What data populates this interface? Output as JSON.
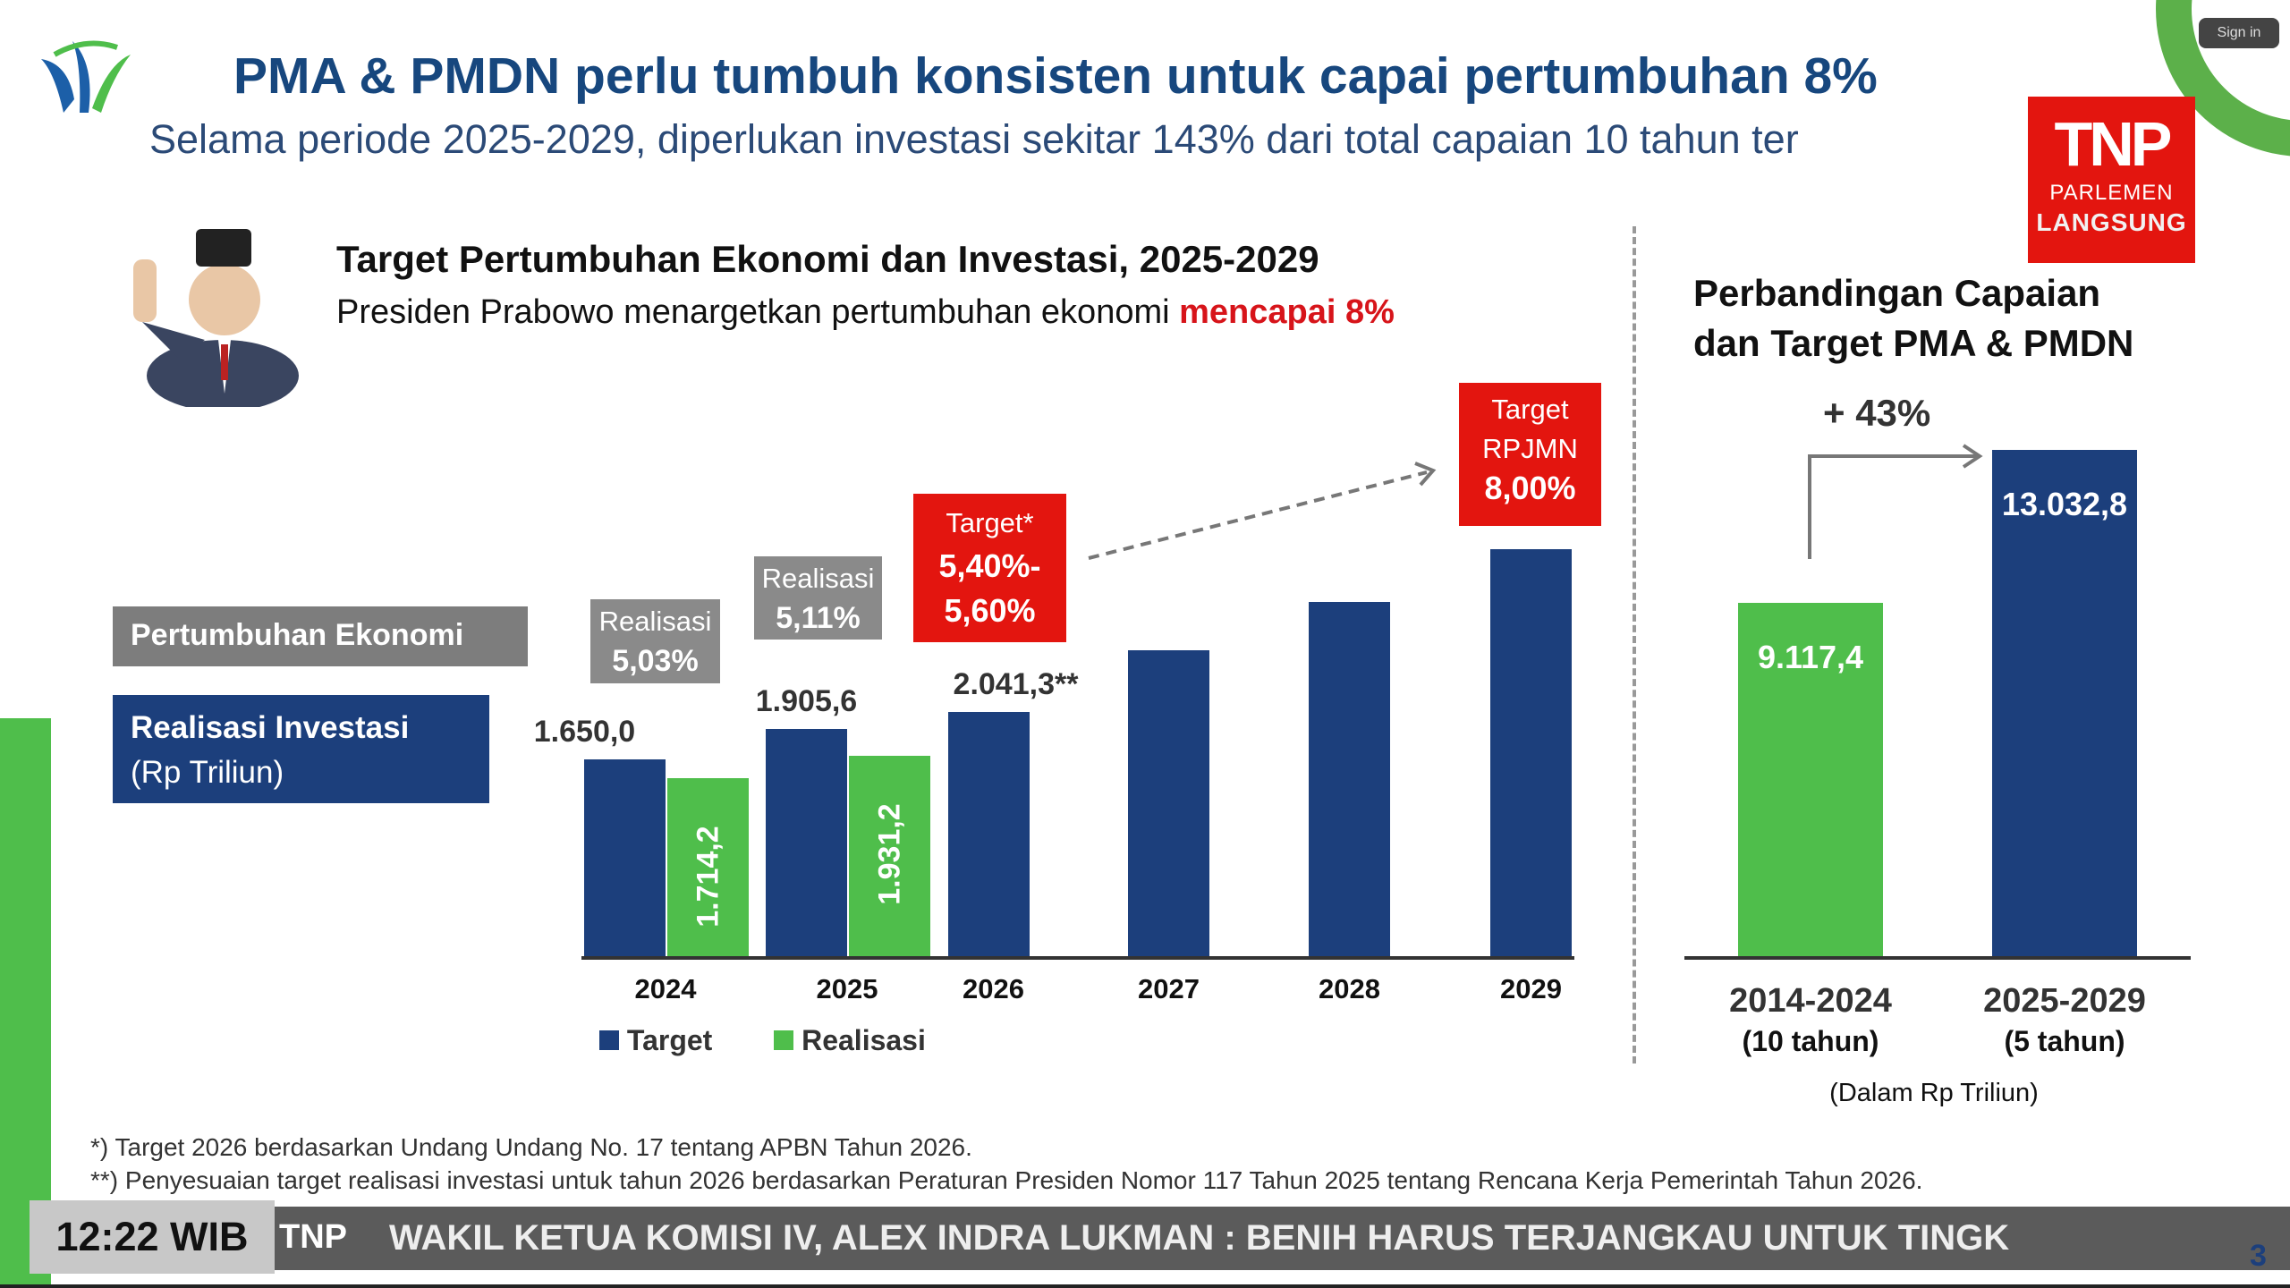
{
  "header": {
    "title": "PMA & PMDN perlu tumbuh konsisten untuk capai pertumbuhan 8%",
    "subtitle": "Selama periode 2025-2029, diperlukan investasi sekitar 143% dari total capaian 10 tahun ter"
  },
  "overlay": {
    "tnp_logo": "TNP",
    "tnp_sub": "PARLEMEN",
    "live": "LANGSUNG",
    "sign_in": "Sign in",
    "time": "12:22 WIB",
    "ticker": "WAKIL KETUA KOMISI IV, ALEX INDRA LUKMAN : BENIH HARUS TERJANGKAU UNTUK TINGK",
    "page_number": "3"
  },
  "left_panel": {
    "title": "Target Pertumbuhan Ekonomi dan Investasi, 2025-2029",
    "subtitle_prefix": "Presiden Prabowo menargetkan pertumbuhan ekonomi ",
    "subtitle_highlight": "mencapai 8%",
    "label_growth": "Pertumbuhan Ekonomi",
    "label_invest": "Realisasi Investasi",
    "label_invest_unit": "(Rp Triliun)",
    "growth_boxes": [
      {
        "label": "Realisasi",
        "value": "5,03%"
      },
      {
        "label": "Realisasi",
        "value": "5,11%"
      },
      {
        "label": "Target*",
        "value": "5,40%-\n5,60%"
      },
      {
        "label": "Target\nRPJMN",
        "value": "8,00%"
      }
    ]
  },
  "right_panel": {
    "title_line1": "Perbandingan Capaian",
    "title_line2": "dan Target PMA & PMDN",
    "increase": "+ 43%",
    "unit": "(Dalam Rp Triliun)"
  },
  "chart_data": [
    {
      "type": "bar",
      "categories": [
        "2024",
        "2025",
        "2026",
        "2027",
        "2028",
        "2029"
      ],
      "series": [
        {
          "name": "Target",
          "color": "#1c3f7c",
          "values": [
            1650.0,
            1905.6,
            2041.3,
            null,
            null,
            null
          ],
          "labels": [
            "1.650,0",
            "1.905,6",
            "2.041,3**",
            "",
            "",
            ""
          ]
        },
        {
          "name": "Realisasi",
          "color": "#4fbe4b",
          "values": [
            1714.2,
            1931.2,
            null,
            null,
            null,
            null
          ],
          "labels": [
            "1.714,2",
            "1.931,2",
            "",
            "",
            "",
            ""
          ]
        }
      ],
      "legend": [
        "Target",
        "Realisasi"
      ],
      "legend_placement": "bottom"
    },
    {
      "type": "bar",
      "categories": [
        "2014-2024",
        "2025-2029"
      ],
      "sublabels": [
        "(10 tahun)",
        "(5 tahun)"
      ],
      "values": [
        9117.4,
        13032.8
      ],
      "labels": [
        "9.117,4",
        "13.032,8"
      ],
      "colors": [
        "#4fbe4b",
        "#1c3f7c"
      ]
    }
  ],
  "footnotes": [
    "*) Target 2026 berdasarkan Undang Undang No. 17 tentang APBN Tahun 2026.",
    "**) Penyesuaian target realisasi investasi untuk tahun 2026 berdasarkan Peraturan Presiden Nomor 117 Tahun 2025 tentang Rencana Kerja Pemerintah Tahun 2026."
  ]
}
